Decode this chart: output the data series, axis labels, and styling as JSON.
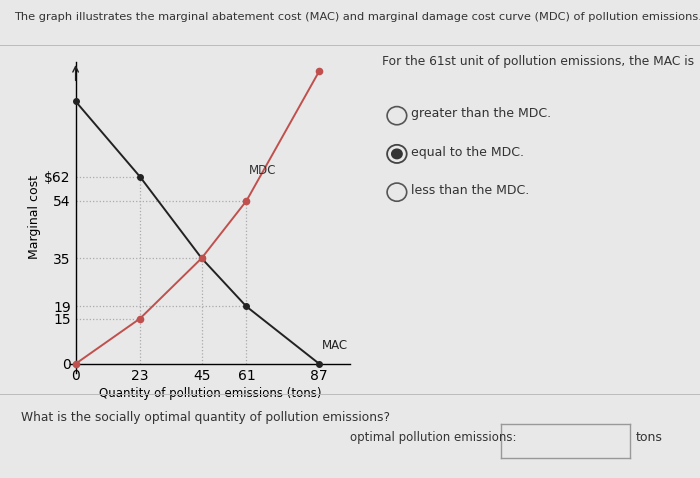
{
  "title": "The graph illustrates the marginal abatement cost (MAC) and marginal damage cost curve (MDC) of pollution emissions.",
  "ylabel": "Marginal cost",
  "xlabel": "Quantity of pollution emissions (tons)",
  "mac_x": [
    0,
    23,
    45,
    61,
    87
  ],
  "mac_y": [
    87,
    62,
    35,
    19,
    0
  ],
  "mdc_x": [
    0,
    23,
    45,
    61,
    87
  ],
  "mdc_y": [
    0,
    15,
    35,
    54,
    97
  ],
  "mac_color": "#222222",
  "mdc_color": "#c0504d",
  "mac_label": "MAC",
  "mdc_label": "MDC",
  "x_ticks": [
    0,
    23,
    45,
    61,
    87
  ],
  "y_ticks": [
    0,
    15,
    19,
    35,
    54,
    62
  ],
  "y_tick_labels": [
    "0",
    "15",
    "19",
    "35",
    "54",
    "$62"
  ],
  "dotted_color": "#aaaaaa",
  "bg_color": "#e8e8e8",
  "right_question": "For the 61st unit of pollution emissions, the MAC is",
  "options": [
    "greater than the MDC.",
    "equal to the MDC.",
    "less than the MDC."
  ],
  "selected_option": 1,
  "bottom_question": "What is the socially optimal quantity of pollution emissions?",
  "bottom_label": "optimal pollution emissions:",
  "bottom_unit": "tons",
  "xlim": [
    0,
    95
  ],
  "ylim": [
    0,
    100
  ],
  "chart_top_y": 87
}
